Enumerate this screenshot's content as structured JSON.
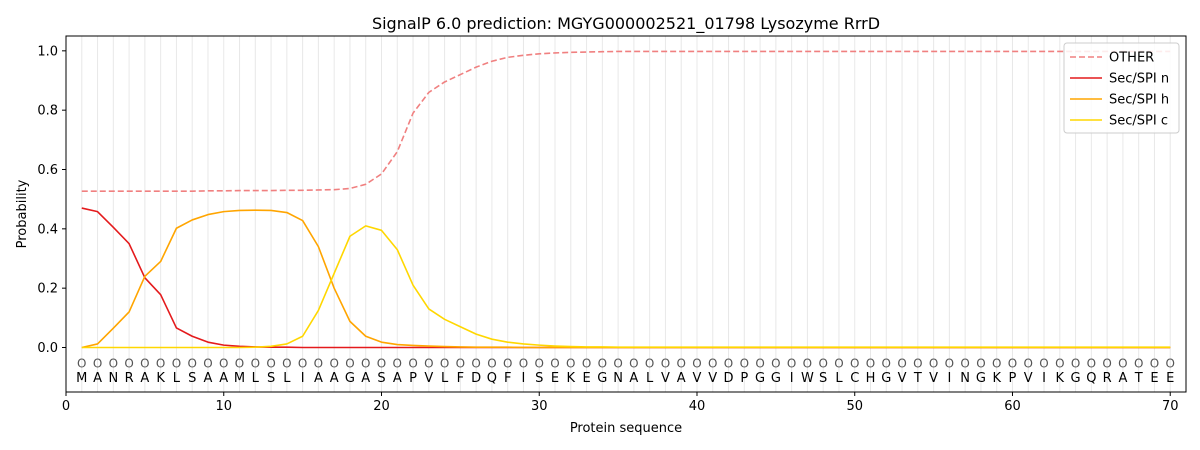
{
  "chart_data": {
    "type": "line",
    "title": "SignalP 6.0 prediction: MGYG000002521_01798 Lysozyme RrrD",
    "xlabel": "Protein sequence",
    "ylabel": "Probability",
    "xlim": [
      0,
      71
    ],
    "ylim": [
      -0.15,
      1.05
    ],
    "x_ticks": [
      0,
      10,
      20,
      30,
      40,
      50,
      60,
      70
    ],
    "y_ticks": [
      0.0,
      0.2,
      0.4,
      0.6,
      0.8,
      1.0
    ],
    "x_tick_labels": [
      "0",
      "10",
      "20",
      "30",
      "40",
      "50",
      "60",
      "70"
    ],
    "y_tick_labels": [
      "0.0",
      "0.2",
      "0.4",
      "0.6",
      "0.8",
      "1.0"
    ],
    "grid": "vertical lines at each residue",
    "legend_position": "top-right",
    "sequence": [
      "M",
      "A",
      "N",
      "R",
      "A",
      "K",
      "L",
      "S",
      "A",
      "A",
      "M",
      "L",
      "S",
      "L",
      "I",
      "A",
      "A",
      "G",
      "A",
      "S",
      "A",
      "P",
      "V",
      "L",
      "F",
      "D",
      "Q",
      "F",
      "I",
      "S",
      "E",
      "K",
      "E",
      "G",
      "N",
      "A",
      "L",
      "V",
      "A",
      "V",
      "V",
      "D",
      "P",
      "G",
      "G",
      "I",
      "W",
      "S",
      "L",
      "C",
      "H",
      "G",
      "V",
      "T",
      "V",
      "I",
      "N",
      "G",
      "K",
      "P",
      "V",
      "I",
      "K",
      "G",
      "Q",
      "R",
      "A",
      "T",
      "E",
      "E"
    ],
    "predicted_labels": [
      "O",
      "O",
      "O",
      "O",
      "O",
      "O",
      "O",
      "O",
      "O",
      "O",
      "O",
      "O",
      "O",
      "O",
      "O",
      "O",
      "O",
      "O",
      "O",
      "O",
      "O",
      "O",
      "O",
      "O",
      "O",
      "O",
      "O",
      "O",
      "O",
      "O",
      "O",
      "O",
      "O",
      "O",
      "O",
      "O",
      "O",
      "O",
      "O",
      "O",
      "O",
      "O",
      "O",
      "O",
      "O",
      "O",
      "O",
      "O",
      "O",
      "O",
      "O",
      "O",
      "O",
      "O",
      "O",
      "O",
      "O",
      "O",
      "O",
      "O",
      "O",
      "O",
      "O",
      "O",
      "O",
      "O",
      "O",
      "O",
      "O",
      "O"
    ],
    "series": [
      {
        "name": "OTHER",
        "color": "#f08080",
        "dashed": true,
        "values": [
          0.527,
          0.527,
          0.527,
          0.527,
          0.527,
          0.527,
          0.527,
          0.527,
          0.528,
          0.528,
          0.529,
          0.529,
          0.529,
          0.53,
          0.53,
          0.531,
          0.532,
          0.536,
          0.55,
          0.585,
          0.66,
          0.79,
          0.86,
          0.895,
          0.92,
          0.945,
          0.965,
          0.978,
          0.985,
          0.99,
          0.993,
          0.995,
          0.996,
          0.997,
          0.998,
          0.998,
          0.998,
          0.998,
          0.998,
          0.998,
          0.998,
          0.998,
          0.998,
          0.998,
          0.998,
          0.998,
          0.998,
          0.998,
          0.998,
          0.998,
          0.998,
          0.998,
          0.998,
          0.998,
          0.998,
          0.998,
          0.998,
          0.998,
          0.998,
          0.998,
          0.998,
          0.998,
          0.998,
          0.998,
          0.998,
          0.998,
          0.998,
          0.998,
          0.998,
          0.998
        ]
      },
      {
        "name": "Sec/SPI n",
        "color": "#e41a1c",
        "dashed": false,
        "values": [
          0.47,
          0.458,
          0.405,
          0.35,
          0.235,
          0.178,
          0.066,
          0.038,
          0.018,
          0.008,
          0.004,
          0.002,
          0.001,
          0.001,
          0.0,
          0.0,
          0.0,
          0.0,
          0.0,
          0.0,
          0.0,
          0.0,
          0.0,
          0.0,
          0.0,
          0.0,
          0.0,
          0.0,
          0.0,
          0.0,
          0.0,
          0.0,
          0.0,
          0.0,
          0.0,
          0.0,
          0.0,
          0.0,
          0.0,
          0.0,
          0.0,
          0.0,
          0.0,
          0.0,
          0.0,
          0.0,
          0.0,
          0.0,
          0.0,
          0.0,
          0.0,
          0.0,
          0.0,
          0.0,
          0.0,
          0.0,
          0.0,
          0.0,
          0.0,
          0.0,
          0.0,
          0.0,
          0.0,
          0.0,
          0.0,
          0.0,
          0.0,
          0.0,
          0.0,
          0.0
        ]
      },
      {
        "name": "Sec/SPI h",
        "color": "#ffa500",
        "dashed": false,
        "values": [
          0.0,
          0.012,
          0.065,
          0.12,
          0.24,
          0.29,
          0.402,
          0.43,
          0.448,
          0.458,
          0.462,
          0.463,
          0.462,
          0.455,
          0.428,
          0.34,
          0.2,
          0.088,
          0.038,
          0.018,
          0.01,
          0.007,
          0.005,
          0.003,
          0.002,
          0.001,
          0.001,
          0.001,
          0.0,
          0.0,
          0.0,
          0.0,
          0.0,
          0.0,
          0.0,
          0.0,
          0.0,
          0.0,
          0.0,
          0.0,
          0.0,
          0.0,
          0.0,
          0.0,
          0.0,
          0.0,
          0.0,
          0.0,
          0.0,
          0.0,
          0.0,
          0.0,
          0.0,
          0.0,
          0.0,
          0.0,
          0.0,
          0.0,
          0.0,
          0.0,
          0.0,
          0.0,
          0.0,
          0.0,
          0.0,
          0.0,
          0.0,
          0.0,
          0.0,
          0.0
        ]
      },
      {
        "name": "Sec/SPI c",
        "color": "#ffd700",
        "dashed": false,
        "values": [
          0.0,
          0.0,
          0.0,
          0.0,
          0.0,
          0.0,
          0.0,
          0.0,
          0.0,
          0.0,
          0.0,
          0.001,
          0.004,
          0.012,
          0.038,
          0.125,
          0.25,
          0.375,
          0.41,
          0.395,
          0.33,
          0.21,
          0.13,
          0.095,
          0.07,
          0.045,
          0.028,
          0.018,
          0.012,
          0.008,
          0.005,
          0.003,
          0.002,
          0.002,
          0.001,
          0.001,
          0.001,
          0.001,
          0.001,
          0.001,
          0.001,
          0.001,
          0.001,
          0.001,
          0.001,
          0.001,
          0.001,
          0.001,
          0.001,
          0.001,
          0.001,
          0.001,
          0.001,
          0.001,
          0.001,
          0.001,
          0.001,
          0.001,
          0.001,
          0.001,
          0.001,
          0.001,
          0.001,
          0.001,
          0.001,
          0.001,
          0.001,
          0.001,
          0.001,
          0.001
        ]
      }
    ]
  }
}
